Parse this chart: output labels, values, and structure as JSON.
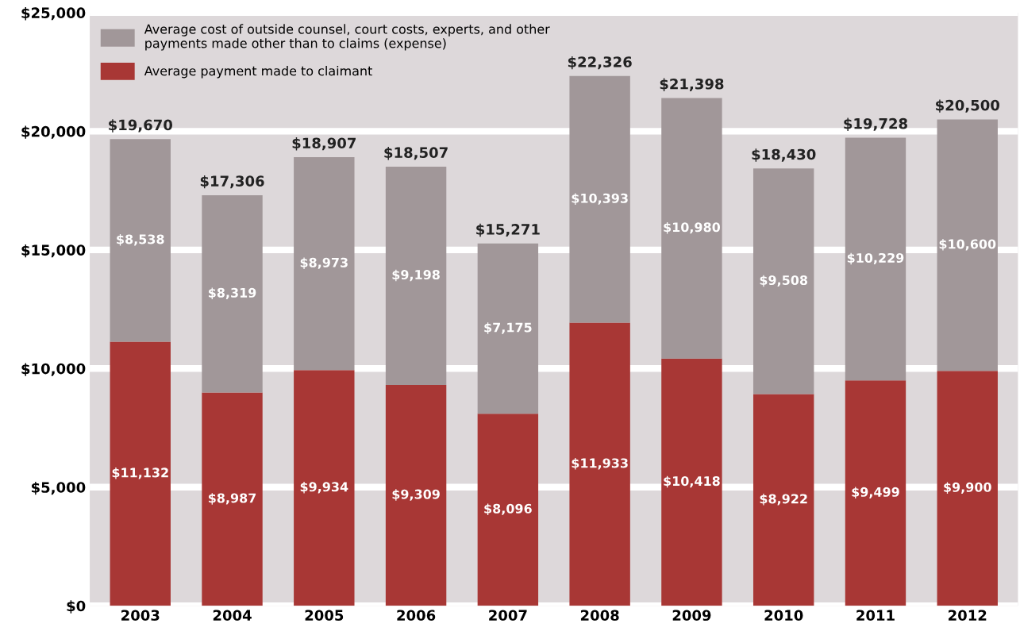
{
  "chart_data": {
    "type": "bar",
    "stacked": true,
    "categories": [
      "2003",
      "2004",
      "2005",
      "2006",
      "2007",
      "2008",
      "2009",
      "2010",
      "2011",
      "2012"
    ],
    "series": [
      {
        "name": "Average payment made to claimant",
        "color": "#a83735",
        "values": [
          11132,
          8987,
          9934,
          9309,
          8096,
          11933,
          10418,
          8922,
          9499,
          9900
        ],
        "value_labels": [
          "$11,132",
          "$8,987",
          "$9,934",
          "$9,309",
          "$8,096",
          "$11,933",
          "$10,418",
          "$8,922",
          "$9,499",
          "$9,900"
        ]
      },
      {
        "name": "Average cost of outside counsel, court costs, experts, and other\npayments made other than to claims (expense)",
        "color": "#a19799",
        "values": [
          8538,
          8319,
          8973,
          9198,
          7175,
          10393,
          10980,
          9508,
          10229,
          10600
        ],
        "value_labels": [
          "$8,538",
          "$8,319",
          "$8,973",
          "$9,198",
          "$7,175",
          "$10,393",
          "$10,980",
          "$9,508",
          "$10,229",
          "$10,600"
        ]
      }
    ],
    "totals": [
      "$19,670",
      "$17,306",
      "$18,907",
      "$18,507",
      "$15,271",
      "$22,326",
      "$21,398",
      "$18,430",
      "$19,728",
      "$20,500"
    ],
    "ylim": [
      0,
      25000
    ],
    "yticks": [
      {
        "value": 0,
        "label": "$0"
      },
      {
        "value": 5000,
        "label": "$5,000"
      },
      {
        "value": 10000,
        "label": "$10,000"
      },
      {
        "value": 15000,
        "label": "$15,000"
      },
      {
        "value": 20000,
        "label": "$20,000"
      },
      {
        "value": 25000,
        "label": "$25,000"
      }
    ],
    "grid": "y",
    "legend": "top left"
  }
}
